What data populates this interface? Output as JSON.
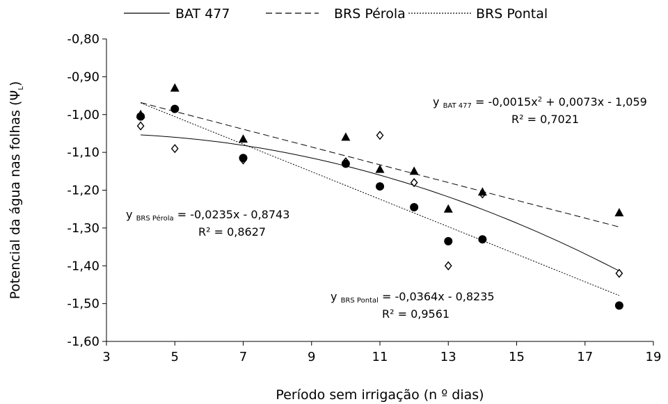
{
  "chart_data": {
    "type": "scatter",
    "xlabel": "Período sem  irrigação (n º dias)",
    "ylabel": "Potencial da água nas folhas (Ψ",
    "ylabel_sub": "L",
    "ylabel_end": ")",
    "xlim": [
      3,
      19
    ],
    "ylim": [
      -1.6,
      -0.8
    ],
    "xticks": [
      3,
      5,
      7,
      9,
      11,
      13,
      15,
      17,
      19
    ],
    "yticks": [
      -0.8,
      -0.9,
      -1.0,
      -1.1,
      -1.2,
      -1.3,
      -1.4,
      -1.5,
      -1.6
    ],
    "ytick_labels": [
      "-0,80",
      "-0,90",
      "-1,00",
      "-1,10",
      "-1,20",
      "-1,30",
      "-1,40",
      "-1,50",
      "-1,60"
    ],
    "grid": false,
    "legend_position": "top",
    "series": [
      {
        "name": "BAT 477",
        "marker": "triangle",
        "line_style": "solid",
        "x": [
          4,
          5,
          7,
          10,
          11,
          12,
          13,
          14,
          18
        ],
        "y": [
          -1.0,
          -0.93,
          -1.065,
          -1.06,
          -1.145,
          -1.15,
          -1.25,
          -1.205,
          -1.26
        ],
        "fit": {
          "type": "poly2",
          "coef": [
            -0.0015,
            0.0073,
            -1.059
          ],
          "x_range": [
            4,
            18
          ]
        }
      },
      {
        "name": "BRS Pérola",
        "marker": "circle",
        "line_style": "dashed",
        "x": [
          4,
          5,
          7,
          10,
          11,
          12,
          13,
          14,
          18
        ],
        "y": [
          -1.005,
          -0.985,
          -1.115,
          -1.13,
          -1.19,
          -1.245,
          -1.335,
          -1.33,
          -1.505
        ],
        "fit": {
          "type": "linear",
          "coef": [
            -0.0235,
            -0.8743
          ],
          "x_range": [
            4,
            18
          ]
        }
      },
      {
        "name": "BRS Pontal",
        "marker": "diamond",
        "line_style": "dotted",
        "x": [
          4,
          5,
          7,
          10,
          11,
          12,
          13,
          14,
          18
        ],
        "y": [
          -1.03,
          -1.09,
          -1.12,
          -1.125,
          -1.055,
          -1.18,
          -1.4,
          -1.21,
          -1.42
        ],
        "fit": {
          "type": "linear",
          "coef": [
            -0.0364,
            -0.8235
          ],
          "x_range": [
            4,
            18
          ]
        }
      }
    ],
    "annotations": [
      {
        "prefix": "y",
        "sub": "BAT 477",
        "text": " = -0,0015x",
        "sup": "2",
        "tail": " + 0,0073x - 1,059",
        "r2": "R² = 0,7021"
      },
      {
        "prefix": "y",
        "sub": "BRS Pérola",
        "text": " = -0,0235x - 0,8743",
        "sup": "",
        "tail": "",
        "r2": "R² = 0,8627"
      },
      {
        "prefix": "y",
        "sub": "BRS Pontal",
        "text": " = -0,0364x - 0,8235",
        "sup": "",
        "tail": "",
        "r2": "R² = 0,9561"
      }
    ]
  }
}
